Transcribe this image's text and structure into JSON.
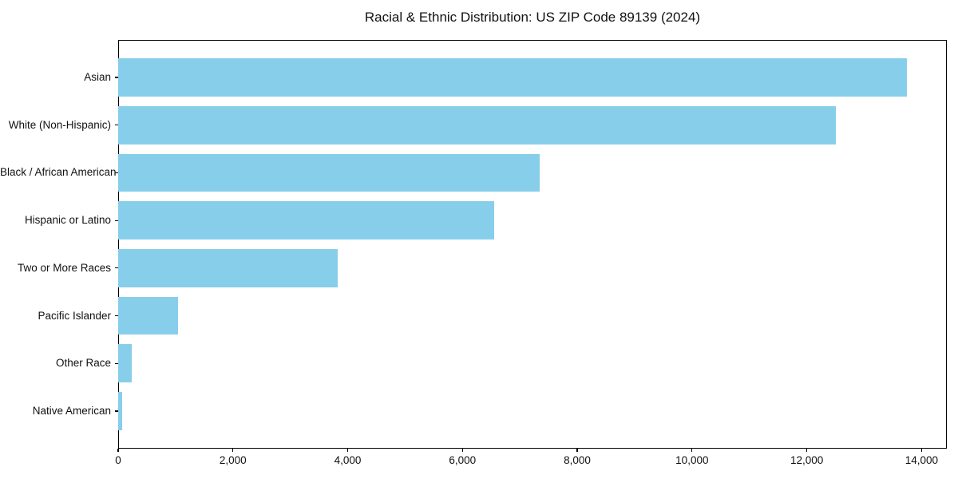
{
  "chart_data": {
    "type": "bar",
    "orientation": "horizontal",
    "title": "Racial & Ethnic Distribution: US ZIP Code 89139 (2024)",
    "categories": [
      "Asian",
      "White (Non-Hispanic)",
      "Black / African American",
      "Hispanic or Latino",
      "Two or More Races",
      "Pacific Islander",
      "Other Race",
      "Native American"
    ],
    "values": [
      13750,
      12510,
      7340,
      6550,
      3820,
      1040,
      230,
      65
    ],
    "xlabel": "",
    "ylabel": "",
    "xlim": [
      0,
      14440
    ],
    "xticks": [
      0,
      2000,
      4000,
      6000,
      8000,
      10000,
      12000,
      14000
    ],
    "xtick_labels": [
      "0",
      "2,000",
      "4,000",
      "6,000",
      "8,000",
      "10,000",
      "12,000",
      "14,000"
    ],
    "bar_color": "#87CEEB",
    "grid": false,
    "legend": "none",
    "background_color": "#ffffff"
  }
}
